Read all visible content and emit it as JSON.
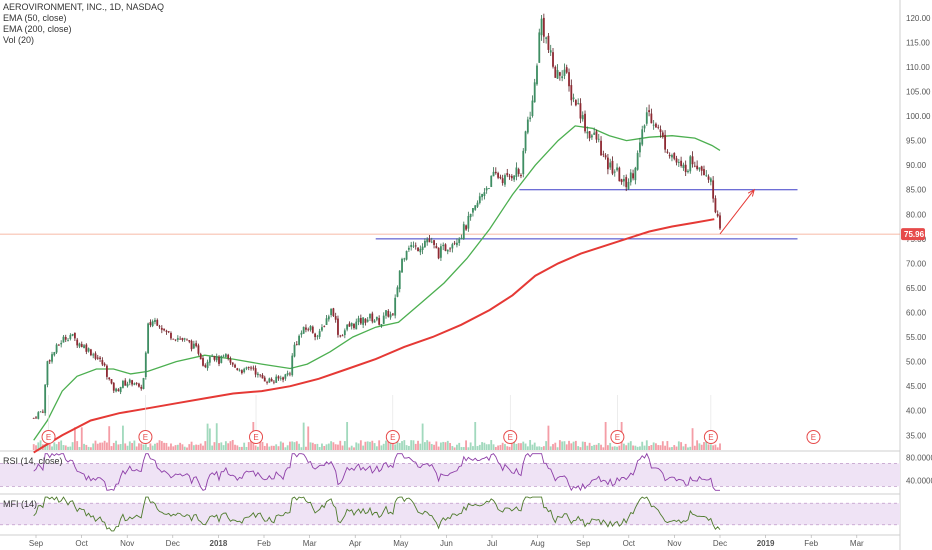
{
  "legend": {
    "title": "AEROVIRONMENT, INC., 1D, NASDAQ",
    "ema50": "EMA (50, close)",
    "ema200": "EMA (200, close)",
    "vol": "Vol (20)",
    "rsi": "RSI (14, close)",
    "mfi": "MFI (14)"
  },
  "price_label": "75.96",
  "earnings_marker": "E",
  "colors": {
    "up": "#53b987",
    "down": "#eb4d5c",
    "ema50": "#4caf50",
    "ema200": "#e53935",
    "hline": "#3f3fc8",
    "arrow": "#e53935",
    "price_line": "#f4a38a",
    "osc_line": "#8e3fa8",
    "osc_fill": "#efe3f5",
    "mfi_line": "#4f7b2d",
    "price_badge": "#e64a4a"
  },
  "chart_data": {
    "type": "candlestick",
    "symbol": "AEROVIRONMENT, INC., 1D, NASDAQ",
    "x_ticks": [
      "Sep",
      "Oct",
      "Nov",
      "Dec",
      "2018",
      "Feb",
      "Mar",
      "Apr",
      "May",
      "Jun",
      "Jul",
      "Aug",
      "Sep",
      "Oct",
      "Nov",
      "Dec",
      "2019",
      "Feb",
      "Mar"
    ],
    "y_ticks": [
      35,
      40,
      45,
      50,
      55,
      60,
      65,
      70,
      75,
      80,
      85,
      90,
      95,
      100,
      105,
      110,
      115,
      120
    ],
    "ylim": [
      32,
      122
    ],
    "last_price": 75.96,
    "support_level": 75,
    "resistance_level": 85,
    "close_path": [
      [
        0,
        38.5
      ],
      [
        0.04,
        39.5
      ],
      [
        0.08,
        40
      ],
      [
        0.12,
        50
      ],
      [
        0.18,
        52
      ],
      [
        0.25,
        54.5
      ],
      [
        0.32,
        55.5
      ],
      [
        0.38,
        54
      ],
      [
        0.45,
        53
      ],
      [
        0.55,
        51
      ],
      [
        0.62,
        49
      ],
      [
        0.68,
        45
      ],
      [
        0.72,
        44
      ],
      [
        0.78,
        45.5
      ],
      [
        0.88,
        46
      ],
      [
        0.93,
        44
      ],
      [
        0.97,
        47
      ],
      [
        1.0,
        57
      ],
      [
        1.05,
        58.5
      ],
      [
        1.1,
        58
      ],
      [
        1.15,
        56
      ],
      [
        1.25,
        55
      ],
      [
        1.35,
        54
      ],
      [
        1.45,
        52
      ],
      [
        1.5,
        49
      ],
      [
        1.55,
        52
      ],
      [
        1.62,
        50
      ],
      [
        1.68,
        51
      ],
      [
        1.75,
        49
      ],
      [
        1.85,
        48
      ],
      [
        1.92,
        49
      ],
      [
        1.97,
        47
      ],
      [
        2.02,
        46.5
      ],
      [
        2.1,
        46
      ],
      [
        2.2,
        47
      ],
      [
        2.25,
        48
      ],
      [
        2.28,
        53
      ],
      [
        2.35,
        56
      ],
      [
        2.42,
        57
      ],
      [
        2.5,
        55
      ],
      [
        2.55,
        58
      ],
      [
        2.62,
        61
      ],
      [
        2.68,
        55
      ],
      [
        2.75,
        57
      ],
      [
        2.85,
        58
      ],
      [
        2.95,
        59
      ],
      [
        3.05,
        58
      ],
      [
        3.1,
        60
      ],
      [
        3.15,
        59
      ],
      [
        3.22,
        70
      ],
      [
        3.28,
        74
      ],
      [
        3.35,
        73
      ],
      [
        3.45,
        75
      ],
      [
        3.55,
        72
      ],
      [
        3.65,
        74
      ],
      [
        3.75,
        76
      ],
      [
        3.85,
        80
      ],
      [
        3.95,
        85
      ],
      [
        4.05,
        88
      ],
      [
        4.15,
        87
      ],
      [
        4.22,
        89
      ],
      [
        4.28,
        88
      ],
      [
        4.32,
        98
      ],
      [
        4.38,
        103
      ],
      [
        4.45,
        120
      ],
      [
        4.52,
        113
      ],
      [
        4.58,
        108
      ],
      [
        4.65,
        110
      ],
      [
        4.7,
        105
      ],
      [
        4.78,
        102
      ],
      [
        4.85,
        97
      ],
      [
        4.95,
        95
      ],
      [
        5.02,
        90
      ],
      [
        5.1,
        89
      ],
      [
        5.18,
        86
      ],
      [
        5.25,
        88
      ],
      [
        5.32,
        94
      ],
      [
        5.38,
        101
      ],
      [
        5.45,
        99
      ],
      [
        5.52,
        95
      ],
      [
        5.6,
        92
      ],
      [
        5.68,
        89
      ],
      [
        5.78,
        91
      ],
      [
        5.85,
        90
      ],
      [
        5.92,
        88
      ],
      [
        5.97,
        83
      ],
      [
        6.02,
        76
      ]
    ],
    "ema50_path": [
      [
        0,
        34
      ],
      [
        0.12,
        38
      ],
      [
        0.25,
        44
      ],
      [
        0.38,
        47
      ],
      [
        0.55,
        48.5
      ],
      [
        0.7,
        48.5
      ],
      [
        0.85,
        47.5
      ],
      [
        1.0,
        48
      ],
      [
        1.25,
        50
      ],
      [
        1.5,
        51.3
      ],
      [
        1.75,
        50.5
      ],
      [
        2.0,
        49.5
      ],
      [
        2.25,
        48.6
      ],
      [
        2.4,
        49.5
      ],
      [
        2.6,
        52
      ],
      [
        2.8,
        55
      ],
      [
        3.0,
        57
      ],
      [
        3.2,
        58
      ],
      [
        3.4,
        62
      ],
      [
        3.6,
        66
      ],
      [
        3.8,
        71
      ],
      [
        4.0,
        77
      ],
      [
        4.2,
        84
      ],
      [
        4.4,
        90
      ],
      [
        4.6,
        95
      ],
      [
        4.75,
        98
      ],
      [
        4.9,
        97.5
      ],
      [
        5.05,
        96
      ],
      [
        5.2,
        95
      ],
      [
        5.4,
        95.7
      ],
      [
        5.6,
        96
      ],
      [
        5.8,
        95.5
      ],
      [
        5.95,
        94
      ],
      [
        6.02,
        93
      ]
    ],
    "ema200_path": [
      [
        0,
        31.5
      ],
      [
        0.25,
        35
      ],
      [
        0.5,
        38
      ],
      [
        0.75,
        39.5
      ],
      [
        1.0,
        40.5
      ],
      [
        1.25,
        41.5
      ],
      [
        1.5,
        42.5
      ],
      [
        1.75,
        43.5
      ],
      [
        2.0,
        44
      ],
      [
        2.25,
        45
      ],
      [
        2.5,
        46.5
      ],
      [
        2.75,
        48.5
      ],
      [
        3.0,
        50.5
      ],
      [
        3.25,
        53
      ],
      [
        3.5,
        55
      ],
      [
        3.75,
        57.5
      ],
      [
        4.0,
        60.5
      ],
      [
        4.2,
        63.5
      ],
      [
        4.4,
        67.5
      ],
      [
        4.6,
        70
      ],
      [
        4.8,
        72
      ],
      [
        5.0,
        73.5
      ],
      [
        5.2,
        75
      ],
      [
        5.4,
        76.5
      ],
      [
        5.6,
        77.5
      ],
      [
        5.8,
        78.3
      ],
      [
        5.97,
        79
      ]
    ],
    "earnings_at": [
      0.13,
      0.98,
      1.95,
      3.15,
      4.18,
      5.12,
      5.94
    ],
    "future_earnings_at": [
      6.84
    ],
    "hlines": [
      {
        "level": 75,
        "from": 3.0,
        "to": 6.7
      },
      {
        "level": 85,
        "from": 4.26,
        "to": 6.7
      }
    ],
    "arrow": {
      "from": [
        6.02,
        76
      ],
      "to": [
        6.32,
        85
      ]
    },
    "rsi_ticks": [
      80,
      40
    ],
    "rsi_ylim": [
      20,
      90
    ],
    "rsi_band": [
      30,
      70
    ],
    "mfi_ylim": [
      0,
      100
    ],
    "mfi_band": [
      20,
      80
    ]
  }
}
